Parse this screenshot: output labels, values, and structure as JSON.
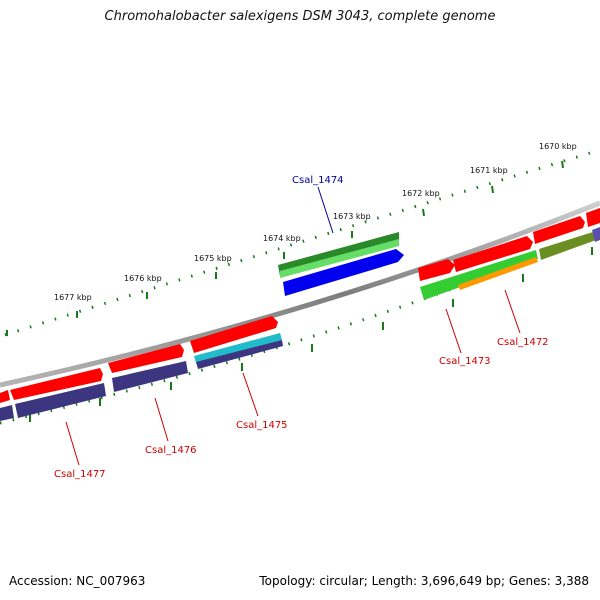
{
  "title": "Chromohalobacter salexigens DSM 3043, complete genome",
  "footer": {
    "accession": "Accession: NC_007963",
    "summary": "Topology: circular; Length: 3,696,649 bp; Genes: 3,388"
  },
  "scale": {
    "ticks": [
      {
        "label": "1670 kbp"
      },
      {
        "label": "1671 kbp"
      },
      {
        "label": "1672 kbp"
      },
      {
        "label": "1673 kbp"
      },
      {
        "label": "1674 kbp"
      },
      {
        "label": "1675 kbp"
      },
      {
        "label": "1676 kbp"
      },
      {
        "label": "1677 kbp"
      }
    ]
  },
  "genes": [
    {
      "label": "Csal_1474",
      "color": "#000099"
    },
    {
      "label": "Csal_1472",
      "color": "#cc0000"
    },
    {
      "label": "Csal_1473",
      "color": "#cc0000"
    },
    {
      "label": "Csal_1475",
      "color": "#cc0000"
    },
    {
      "label": "Csal_1476",
      "color": "#cc0000"
    },
    {
      "label": "Csal_1477",
      "color": "#cc0000"
    }
  ],
  "colors": {
    "cds_forward": "#ff0000",
    "cds_reverse": "#ff0000",
    "gene_blue": "#0000ee",
    "gene_purple": "#3c3680",
    "dark_green": "#2a8a2a",
    "light_green": "#33cc33",
    "orange": "#ff9900",
    "olive": "#6b8e23",
    "cyan": "#22bbcc",
    "backbone": "#8a8a8a",
    "tick": "#1a7a1a"
  }
}
